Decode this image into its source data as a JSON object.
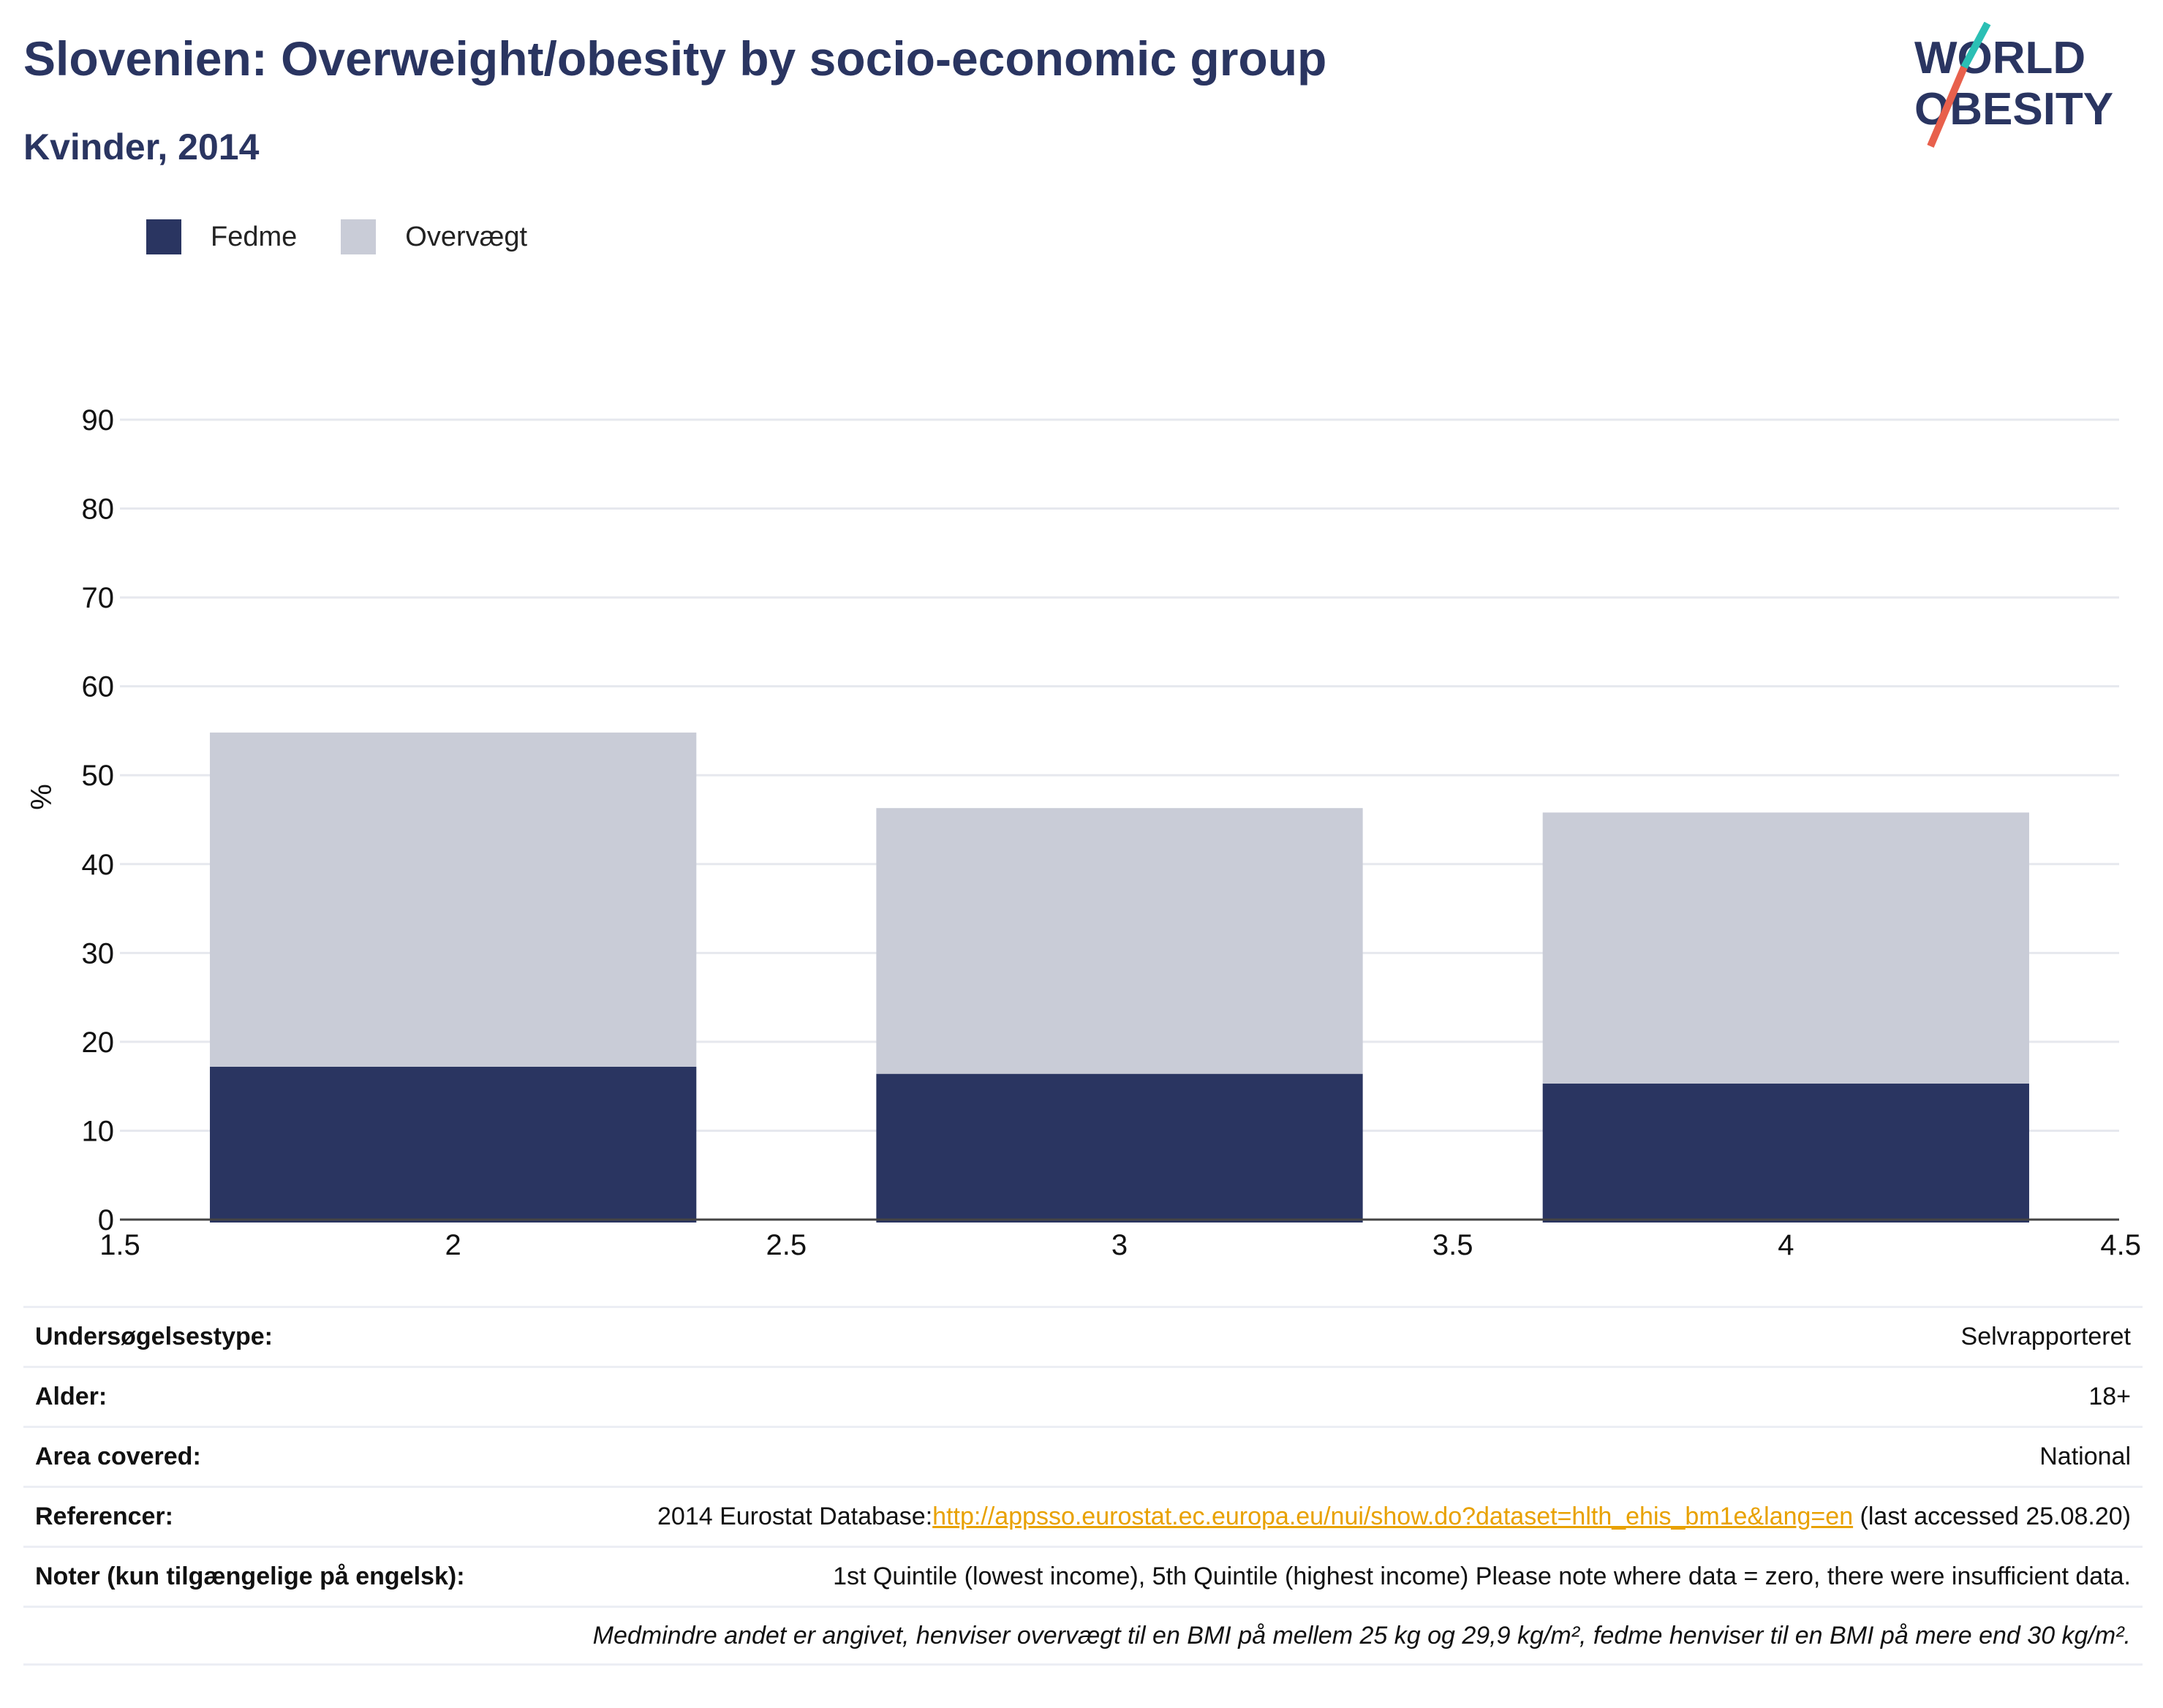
{
  "header": {
    "title": "Slovenien: Overweight/obesity by socio-economic group",
    "subtitle": "Kvinder, 2014"
  },
  "logo": {
    "line1": "WORLD",
    "line2": "OBESITY"
  },
  "colors": {
    "fedme": "#2a3561",
    "overvaegt": "#c9ccd7",
    "title": "#2a3561",
    "link": "#e8a100",
    "logo_teal": "#2bbfb4",
    "logo_red": "#e8604c"
  },
  "chart_data": {
    "type": "bar",
    "stacked": true,
    "x": [
      2,
      3,
      4
    ],
    "series": [
      {
        "name": "Fedme",
        "values": [
          17.2,
          16.4,
          15.3
        ]
      },
      {
        "name": "Overvægt",
        "values": [
          37.6,
          29.9,
          30.5
        ]
      }
    ],
    "ylabel": "%",
    "xlim": [
      1.5,
      4.5
    ],
    "ylim": [
      0,
      90
    ],
    "xticks": [
      "1.5",
      "2",
      "2.5",
      "3",
      "3.5",
      "4",
      "4.5"
    ],
    "yticks": [
      "0",
      "10",
      "20",
      "30",
      "40",
      "50",
      "60",
      "70",
      "80",
      "90"
    ],
    "grid": true,
    "legend_position": "top-left"
  },
  "info": {
    "survey_type": {
      "label": "Undersøgelsestype:",
      "value": "Selvrapporteret"
    },
    "age": {
      "label": "Alder:",
      "value": "18+"
    },
    "area": {
      "label": "Area covered:",
      "value": "National"
    },
    "references": {
      "label": "Referencer:",
      "prefix": "2014 Eurostat Database:",
      "link": "http://appsso.eurostat.ec.europa.eu/nui/show.do?dataset=hlth_ehis_bm1e&lang=en",
      "suffix": " (last accessed 25.08.20)"
    },
    "notes": {
      "label": "Noter (kun tilgængelige på engelsk):",
      "value": "1st Quintile (lowest income), 5th Quintile (highest income) Please note where data = zero, there were insufficient data."
    },
    "footnote": "Medmindre andet er angivet, henviser overvægt til en BMI på mellem 25 kg og 29,9 kg/m², fedme henviser til en BMI på mere end 30 kg/m²."
  }
}
